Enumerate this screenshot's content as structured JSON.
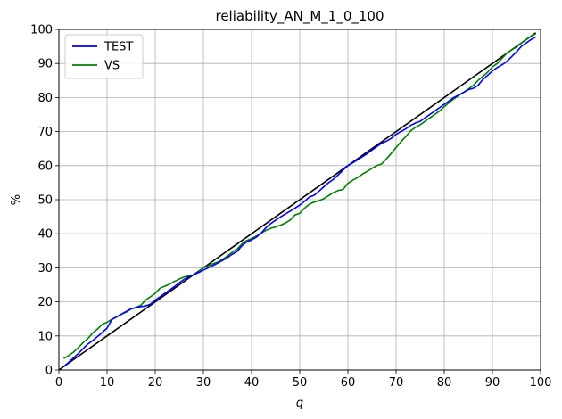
{
  "chart_data": {
    "type": "line",
    "title": "reliability_AN_M_1_0_100",
    "xlabel": "q",
    "ylabel": "%",
    "xlim": [
      0,
      100
    ],
    "ylim": [
      0,
      100
    ],
    "xticks": [
      0,
      10,
      20,
      30,
      40,
      50,
      60,
      70,
      80,
      90,
      100
    ],
    "yticks": [
      0,
      10,
      20,
      30,
      40,
      50,
      60,
      70,
      80,
      90,
      100
    ],
    "grid": true,
    "legend_position": "top-left",
    "series": [
      {
        "name": "TEST",
        "color": "#0000ff",
        "x": [
          1,
          2,
          3,
          4,
          5,
          6,
          7,
          8,
          9,
          10,
          11,
          12,
          13,
          14,
          15,
          16,
          17,
          18,
          19,
          20,
          21,
          22,
          23,
          24,
          25,
          26,
          27,
          28,
          29,
          30,
          31,
          32,
          33,
          34,
          35,
          36,
          37,
          38,
          39,
          40,
          41,
          42,
          43,
          44,
          45,
          46,
          47,
          48,
          49,
          50,
          51,
          52,
          53,
          54,
          55,
          56,
          57,
          58,
          59,
          60,
          61,
          62,
          63,
          64,
          65,
          66,
          67,
          68,
          69,
          70,
          71,
          72,
          73,
          74,
          75,
          76,
          77,
          78,
          79,
          80,
          81,
          82,
          83,
          84,
          85,
          86,
          87,
          88,
          89,
          90,
          91,
          92,
          93,
          94,
          95,
          96,
          97,
          98,
          99
        ],
        "y": [
          1,
          2.2,
          3.5,
          4.8,
          6.2,
          7.6,
          8.6,
          9.8,
          11,
          12.3,
          14.8,
          15.6,
          16.4,
          17.2,
          18,
          18.3,
          18.6,
          18.8,
          19.3,
          20.5,
          21.5,
          22.5,
          23.5,
          24.5,
          25.6,
          26.6,
          27.4,
          28,
          28.6,
          29.3,
          30,
          30.7,
          31.4,
          32.2,
          33,
          34,
          34.8,
          36.5,
          37.6,
          38.2,
          39,
          40.2,
          41.8,
          43,
          44,
          44.9,
          45.8,
          46.6,
          47.5,
          48.4,
          49.5,
          50.8,
          51.3,
          52.5,
          53.8,
          55,
          56,
          57.3,
          58.7,
          60,
          60.8,
          61.7,
          62.6,
          63.5,
          64.6,
          65.6,
          66.6,
          67.2,
          68,
          69.2,
          70,
          70.8,
          71.8,
          72.5,
          73,
          74,
          75,
          76,
          77,
          78,
          79,
          80,
          80.7,
          81.5,
          82.3,
          82.7,
          83.5,
          85.3,
          86.5,
          87.8,
          88.8,
          89.6,
          90.6,
          92,
          93.4,
          95,
          96,
          97,
          97.8
        ]
      },
      {
        "name": "VS",
        "color": "#008000",
        "x": [
          1,
          2,
          3,
          4,
          5,
          6,
          7,
          8,
          9,
          10,
          11,
          12,
          13,
          14,
          15,
          16,
          17,
          18,
          19,
          20,
          21,
          22,
          23,
          24,
          25,
          26,
          27,
          28,
          29,
          30,
          31,
          32,
          33,
          34,
          35,
          36,
          37,
          38,
          39,
          40,
          41,
          42,
          43,
          44,
          45,
          46,
          47,
          48,
          49,
          50,
          51,
          52,
          53,
          54,
          55,
          56,
          57,
          58,
          59,
          60,
          61,
          62,
          63,
          64,
          65,
          66,
          67,
          68,
          69,
          70,
          71,
          72,
          73,
          74,
          75,
          76,
          77,
          78,
          79,
          80,
          81,
          82,
          83,
          84,
          85,
          86,
          87,
          88,
          89,
          90,
          91,
          92,
          93,
          94,
          95,
          96,
          97,
          98,
          99
        ],
        "y": [
          3.4,
          4.2,
          5.2,
          6.5,
          8,
          9.2,
          10.8,
          12,
          13.4,
          14,
          14.9,
          15.6,
          16.4,
          17,
          17.9,
          18.4,
          19,
          20.5,
          21.5,
          22.5,
          24,
          24.6,
          25.2,
          26,
          26.7,
          27.3,
          27.6,
          27.8,
          28.8,
          30,
          30.6,
          31.2,
          31.7,
          32.5,
          33.5,
          34.6,
          35.5,
          37,
          38,
          38.6,
          39.3,
          40.2,
          41,
          41.6,
          42,
          42.5,
          43.1,
          44,
          45.5,
          46,
          47.5,
          48.7,
          49.3,
          49.7,
          50.3,
          51.2,
          52.1,
          52.7,
          53,
          54.8,
          55.7,
          56.5,
          57.5,
          58.3,
          59.2,
          60,
          60.5,
          62,
          63.6,
          65.3,
          67,
          68.5,
          70.2,
          71.2,
          72,
          73,
          74,
          75,
          76,
          77.3,
          78.5,
          79.6,
          80.6,
          81.5,
          82.5,
          83.5,
          85,
          86.2,
          87.4,
          89,
          90,
          91.5,
          93,
          94,
          94.8,
          96,
          97,
          98,
          98.7
        ]
      },
      {
        "name": "",
        "color": "#000000",
        "x": [
          0,
          99
        ],
        "y": [
          0,
          99
        ]
      }
    ]
  }
}
